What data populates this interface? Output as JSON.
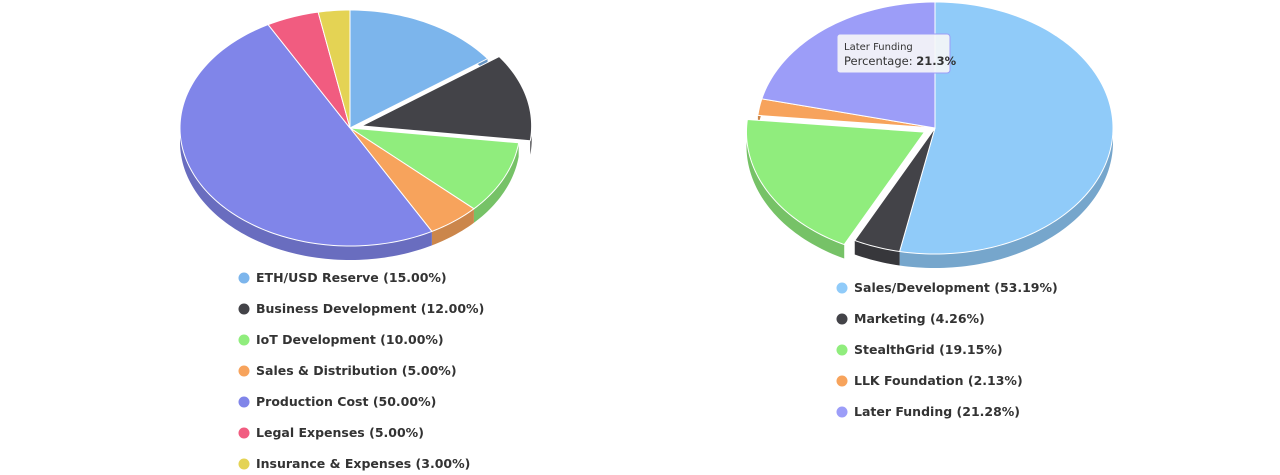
{
  "chart_data": [
    {
      "type": "pie3d",
      "categories": [
        "ETH/USD Reserve",
        "Business Development",
        "IoT Development",
        "Sales & Distribution",
        "Production Cost",
        "Legal Expenses",
        "Insurance & Expenses"
      ],
      "values": [
        15,
        12,
        10,
        5,
        50,
        5,
        3
      ],
      "value_labels": [
        "(15.00%)",
        "(12.00%)",
        "(10.00%)",
        "(5.00%)",
        "(50.00%)",
        "(5.00%)",
        "(3.00%)"
      ],
      "colors": [
        "#7cb5ec",
        "#434348",
        "#90ed7d",
        "#f7a35c",
        "#8085e9",
        "#f15c80",
        "#e4d354"
      ],
      "sliced": [
        false,
        true,
        false,
        false,
        false,
        false,
        false
      ]
    },
    {
      "type": "pie3d",
      "categories": [
        "Sales/Development",
        "Marketing",
        "StealthGrid",
        "LLK Foundation",
        "Later Funding"
      ],
      "values": [
        53.19,
        4.26,
        19.15,
        2.13,
        21.28
      ],
      "value_labels": [
        "(53.19%)",
        "(4.26%)",
        "(19.15%)",
        "(2.13%)",
        "(21.28%)"
      ],
      "colors": [
        "#90cbf9",
        "#434348",
        "#90ed7d",
        "#f7a35c",
        "#9c9df8"
      ],
      "sliced": [
        false,
        false,
        true,
        false,
        false
      ],
      "tooltip": {
        "title": "Later Funding",
        "label": "Percentage:",
        "value_label": "21.3%"
      }
    }
  ]
}
